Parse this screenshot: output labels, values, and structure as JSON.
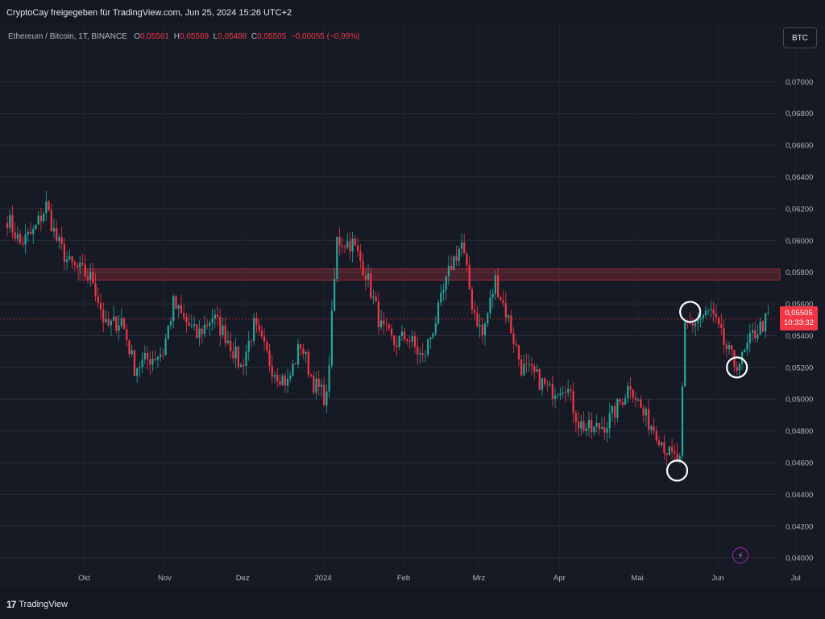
{
  "header": {
    "credit": "CryptoCay freigegeben für TradingView.com, Jun 25, 2024 15:26 UTC+2"
  },
  "legend": {
    "symbol": "Ethereum / Bitcoin, 1T, BINANCE",
    "o_label": "O",
    "o": "0,05561",
    "h_label": "H",
    "h": "0,05569",
    "l_label": "L",
    "l": "0,05488",
    "c_label": "C",
    "c": "0,05505",
    "change": "−0,00055 (−0,99%)"
  },
  "toolbar": {
    "symbol_button": "BTC"
  },
  "price_label": {
    "price": "0,05505",
    "countdown": "10:33:32"
  },
  "footer": {
    "brand": "TradingView",
    "brand_mark": "17"
  },
  "icons": {
    "alert": "lightning-icon"
  },
  "colors": {
    "up": "#26a69a",
    "down": "#f23645",
    "zone": "#f23645",
    "background": "#161a25"
  },
  "chart_data": {
    "type": "candlestick",
    "title": "",
    "xlabel": "",
    "ylabel": "",
    "ylim": [
      0.0394,
      0.0721
    ],
    "y_ticks": [
      "0,04000",
      "0,04200",
      "0,04400",
      "0,04600",
      "0,04800",
      "0,05000",
      "0,05200",
      "0,05400",
      "0,05600",
      "0,05800",
      "0,06000",
      "0,06200",
      "0,06400",
      "0,06600",
      "0,06800",
      "0,07000"
    ],
    "y_tick_values": [
      0.04,
      0.042,
      0.044,
      0.046,
      0.048,
      0.05,
      0.052,
      0.054,
      0.056,
      0.058,
      0.06,
      0.062,
      0.064,
      0.066,
      0.068,
      0.07
    ],
    "x_ticks": [
      "Okt",
      "Nov",
      "Dez",
      "2024",
      "Feb",
      "Mrz",
      "Apr",
      "Mai",
      "Jun",
      "Jul"
    ],
    "x_tick_dates": [
      "2023-10-01",
      "2023-11-01",
      "2023-12-01",
      "2024-01-01",
      "2024-02-01",
      "2024-03-01",
      "2024-04-01",
      "2024-05-01",
      "2024-06-01",
      "2024-07-01"
    ],
    "start_date": "2023-09-06",
    "end_date": "2024-06-25",
    "path": [
      [
        "2023-09-06",
        0.0614
      ],
      [
        "2023-09-11",
        0.0598
      ],
      [
        "2023-09-16",
        0.0605
      ],
      [
        "2023-09-21",
        0.0622
      ],
      [
        "2023-09-25",
        0.06
      ],
      [
        "2023-09-30",
        0.0585
      ],
      [
        "2023-10-05",
        0.058
      ],
      [
        "2023-10-09",
        0.0575
      ],
      [
        "2023-10-14",
        0.0545
      ],
      [
        "2023-10-20",
        0.055
      ],
      [
        "2023-10-25",
        0.052
      ],
      [
        "2023-10-30",
        0.0525
      ],
      [
        "2023-11-05",
        0.053
      ],
      [
        "2023-11-09",
        0.056
      ],
      [
        "2023-11-13",
        0.055
      ],
      [
        "2023-11-18",
        0.054
      ],
      [
        "2023-11-24",
        0.0552
      ],
      [
        "2023-11-30",
        0.0538
      ],
      [
        "2023-12-05",
        0.052
      ],
      [
        "2023-12-10",
        0.0546
      ],
      [
        "2023-12-17",
        0.052
      ],
      [
        "2023-12-23",
        0.051
      ],
      [
        "2023-12-28",
        0.0535
      ],
      [
        "2024-01-02",
        0.051
      ],
      [
        "2024-01-07",
        0.05
      ],
      [
        "2024-01-11",
        0.06
      ],
      [
        "2024-01-17",
        0.0598
      ],
      [
        "2024-01-22",
        0.058
      ],
      [
        "2024-01-28",
        0.0545
      ],
      [
        "2024-02-02",
        0.0535
      ],
      [
        "2024-02-07",
        0.054
      ],
      [
        "2024-02-13",
        0.0525
      ],
      [
        "2024-02-19",
        0.0555
      ],
      [
        "2024-02-24",
        0.0585
      ],
      [
        "2024-02-28",
        0.0598
      ],
      [
        "2024-03-03",
        0.056
      ],
      [
        "2024-03-07",
        0.054
      ],
      [
        "2024-03-12",
        0.0575
      ],
      [
        "2024-03-17",
        0.055
      ],
      [
        "2024-03-22",
        0.052
      ],
      [
        "2024-03-27",
        0.0515
      ],
      [
        "2024-04-02",
        0.0505
      ],
      [
        "2024-04-08",
        0.051
      ],
      [
        "2024-04-13",
        0.0485
      ],
      [
        "2024-04-18",
        0.048
      ],
      [
        "2024-04-24",
        0.0485
      ],
      [
        "2024-04-28",
        0.0495
      ],
      [
        "2024-05-03",
        0.051
      ],
      [
        "2024-05-08",
        0.049
      ],
      [
        "2024-05-13",
        0.048
      ],
      [
        "2024-05-18",
        0.0465
      ],
      [
        "2024-05-22",
        0.046
      ],
      [
        "2024-05-24",
        0.0545
      ],
      [
        "2024-05-29",
        0.055
      ],
      [
        "2024-06-03",
        0.0555
      ],
      [
        "2024-06-08",
        0.0535
      ],
      [
        "2024-06-12",
        0.0522
      ],
      [
        "2024-06-15",
        0.0525
      ],
      [
        "2024-06-19",
        0.054
      ],
      [
        "2024-06-25",
        0.0551
      ]
    ],
    "resistance_zone": [
      0.0575,
      0.0582
    ],
    "current_price": 0.05505,
    "annotations": [
      {
        "type": "circle",
        "date": "2024-05-21",
        "value": 0.0455
      },
      {
        "type": "circle",
        "date": "2024-05-26",
        "value": 0.0555
      },
      {
        "type": "circle",
        "date": "2024-06-13",
        "value": 0.052
      }
    ]
  }
}
